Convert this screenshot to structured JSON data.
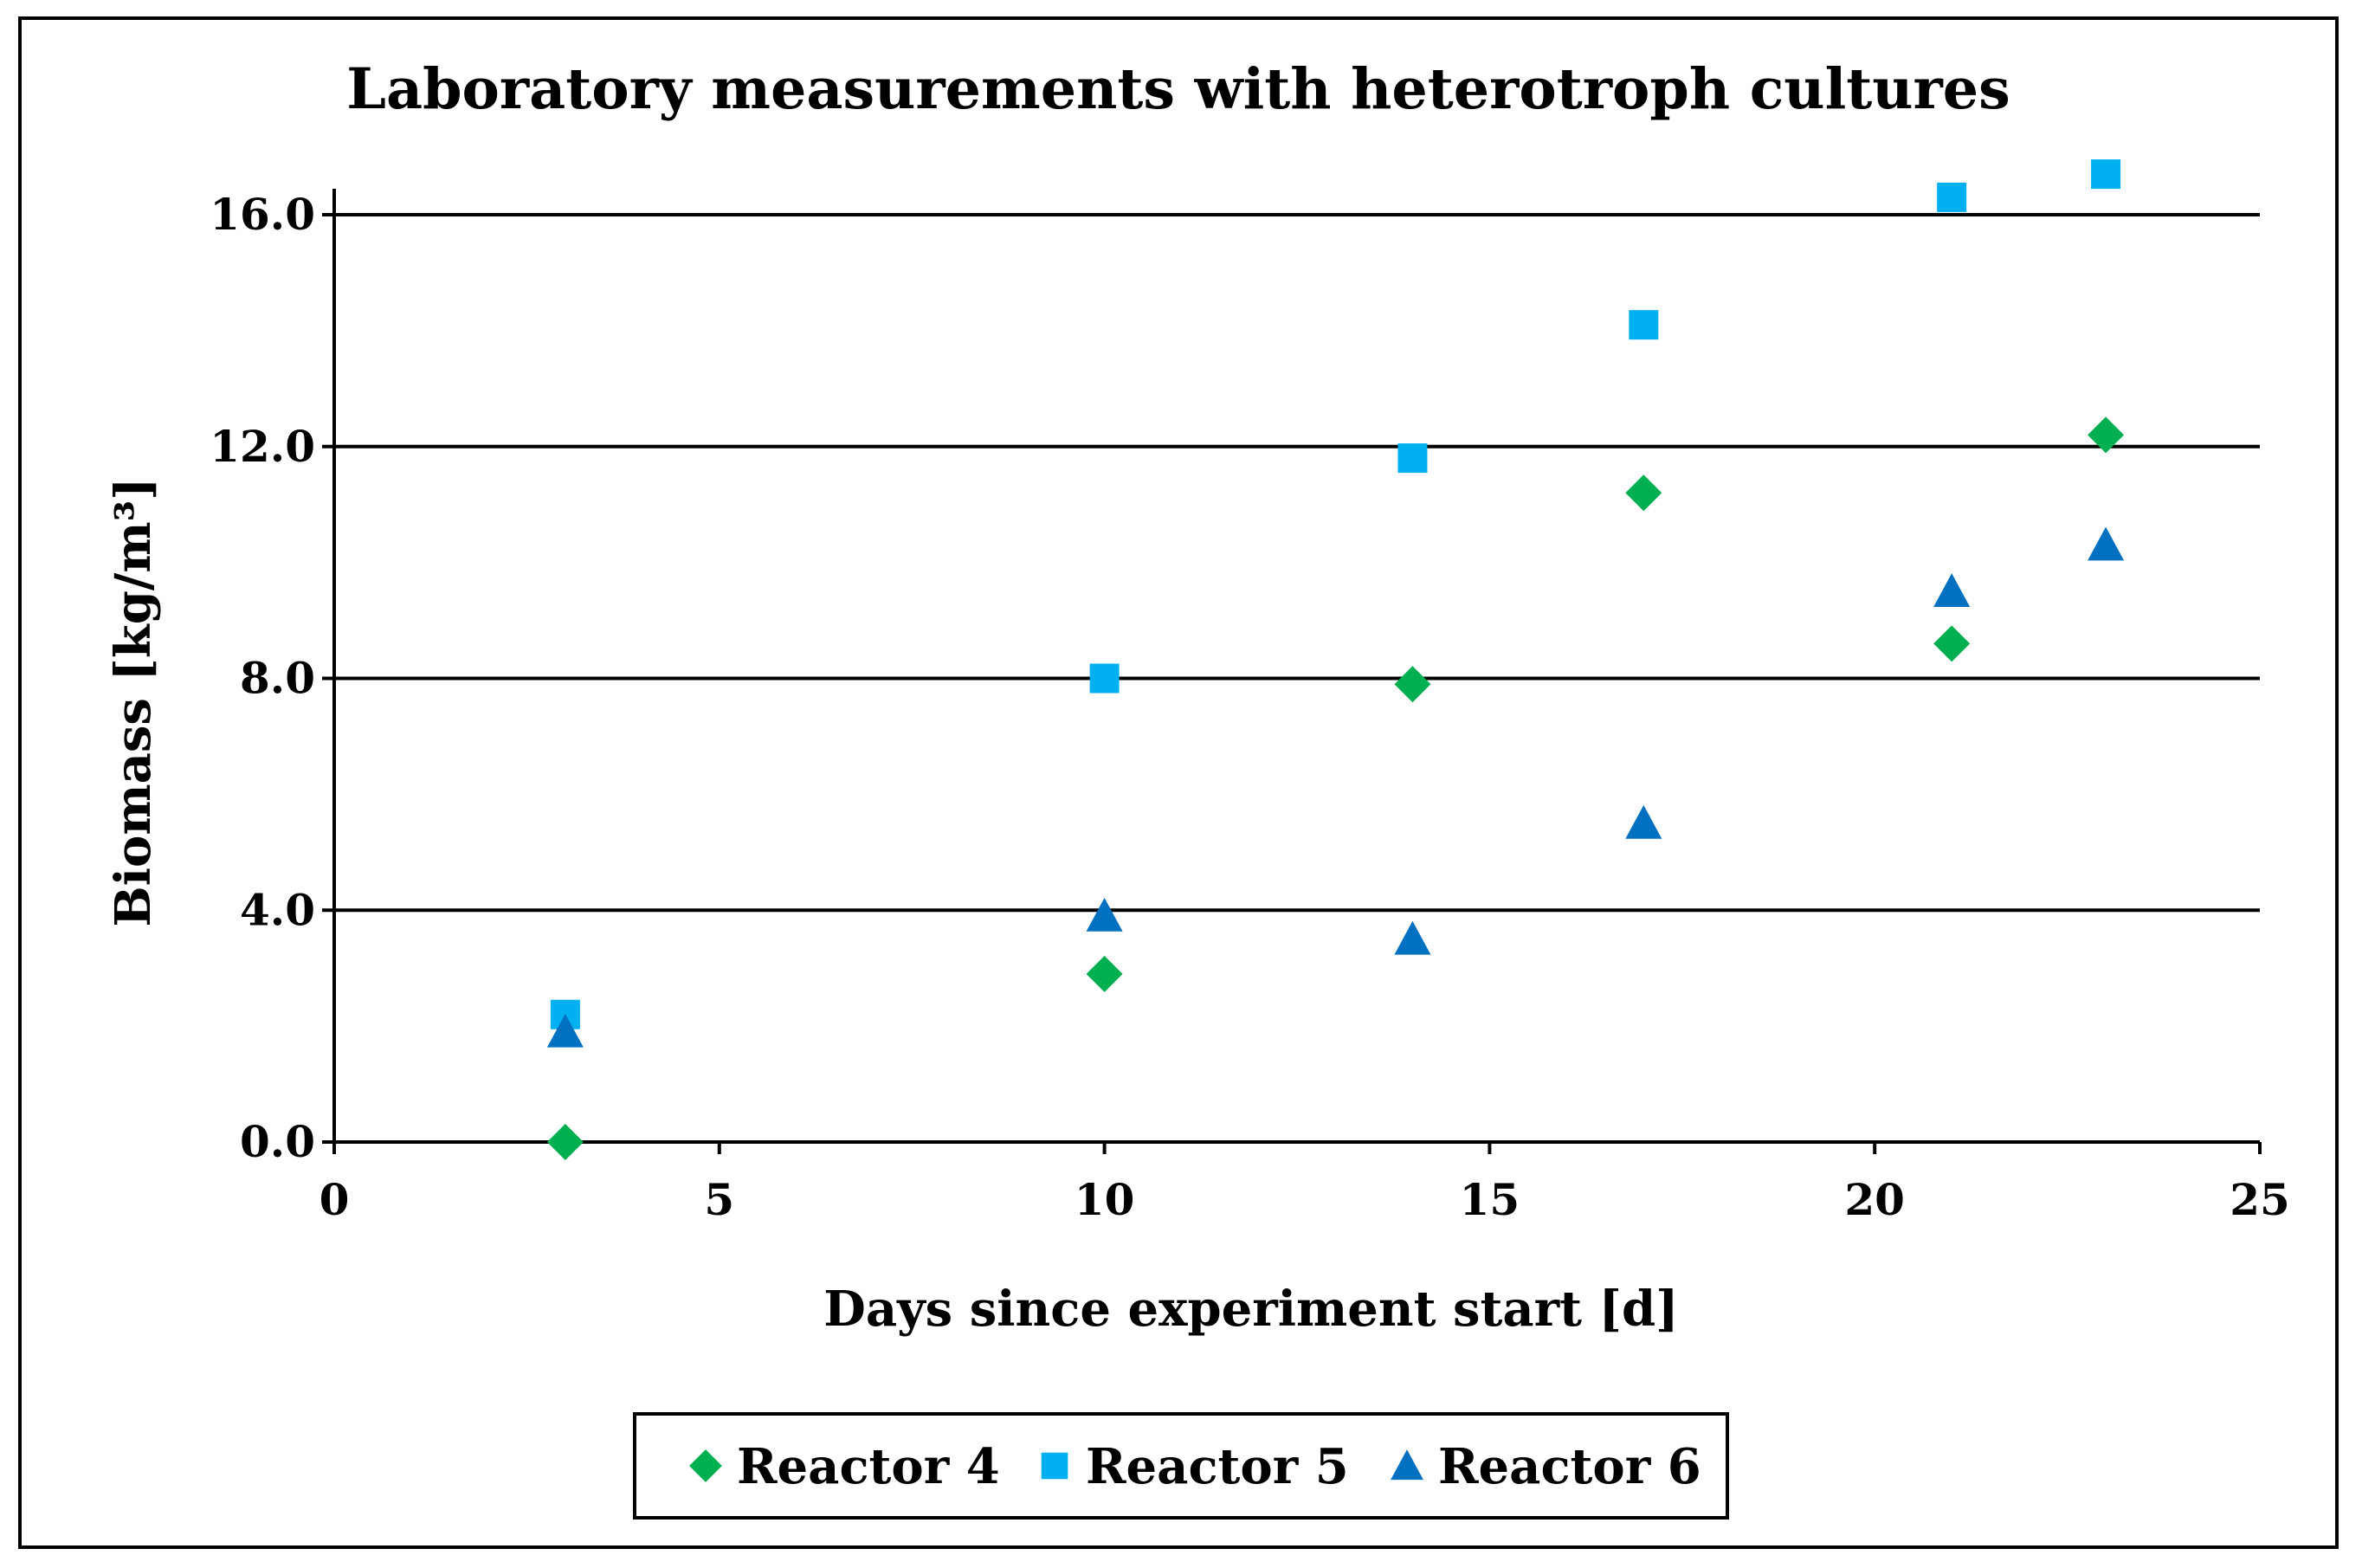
{
  "chart_data": {
    "type": "scatter",
    "title": "Laboratory measurements with heterotroph cultures",
    "xlabel": "Days since experiment start [d]",
    "ylabel": "Biomass [kg/m³]",
    "xlim": [
      0,
      25
    ],
    "ylim": [
      0,
      16
    ],
    "xticks": [
      0,
      5,
      10,
      15,
      20,
      25
    ],
    "xtick_labels": [
      "0",
      "5",
      "10",
      "15",
      "20",
      "25"
    ],
    "yticks": [
      0,
      4,
      8,
      12,
      16
    ],
    "ytick_labels": [
      "0.0",
      "4.0",
      "8.0",
      "12.0",
      "16.0"
    ],
    "grid": "horizontal",
    "legend_position": "bottom",
    "series": [
      {
        "name": "Reactor 4",
        "marker": "diamond",
        "color": "#00B050",
        "x": [
          3,
          10,
          14,
          17,
          21,
          23
        ],
        "y": [
          0.0,
          2.9,
          7.9,
          11.2,
          8.6,
          12.2
        ]
      },
      {
        "name": "Reactor 5",
        "marker": "square",
        "color": "#00B0F0",
        "x": [
          3,
          10,
          14,
          17,
          21,
          23
        ],
        "y": [
          2.2,
          8.0,
          11.8,
          14.1,
          16.3,
          16.7
        ]
      },
      {
        "name": "Reactor 6",
        "marker": "triangle",
        "color": "#0070C0",
        "x": [
          3,
          10,
          14,
          17,
          21,
          23
        ],
        "y": [
          1.9,
          3.9,
          3.5,
          5.5,
          9.5,
          10.3
        ]
      }
    ]
  }
}
